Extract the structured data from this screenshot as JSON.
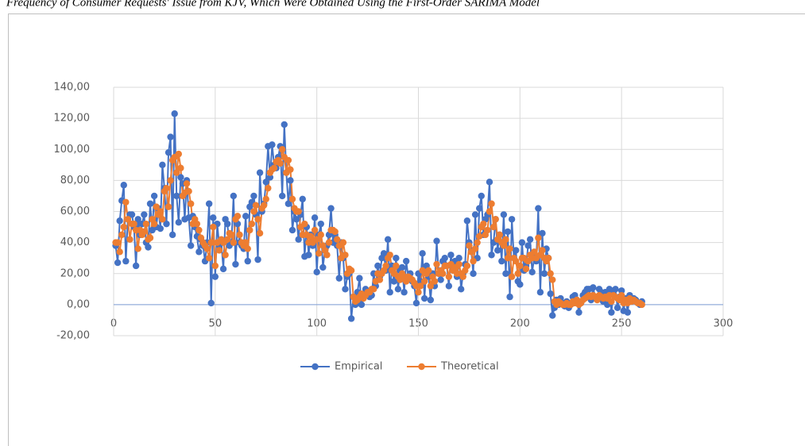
{
  "caption": "Frequency of Consumer Requests' Issue from KJV, Which Were Obtained Using the First-Order SARIMA Model",
  "chart_data": {
    "type": "line",
    "x": [
      1,
      2,
      3,
      4,
      5,
      6,
      7,
      8,
      9,
      10,
      11,
      12,
      13,
      14,
      15,
      16,
      17,
      18,
      19,
      20,
      21,
      22,
      23,
      24,
      25,
      26,
      27,
      28,
      29,
      30,
      31,
      32,
      33,
      34,
      35,
      36,
      37,
      38,
      39,
      40,
      41,
      42,
      43,
      44,
      45,
      46,
      47,
      48,
      49,
      50,
      51,
      52,
      53,
      54,
      55,
      56,
      57,
      58,
      59,
      60,
      61,
      62,
      63,
      64,
      65,
      66,
      67,
      68,
      69,
      70,
      71,
      72,
      73,
      74,
      75,
      76,
      77,
      78,
      79,
      80,
      81,
      82,
      83,
      84,
      85,
      86,
      87,
      88,
      89,
      90,
      91,
      92,
      93,
      94,
      95,
      96,
      97,
      98,
      99,
      100,
      101,
      102,
      103,
      104,
      105,
      106,
      107,
      108,
      109,
      110,
      111,
      112,
      113,
      114,
      115,
      116,
      117,
      118,
      119,
      120,
      121,
      122,
      123,
      124,
      125,
      126,
      127,
      128,
      129,
      130,
      131,
      132,
      133,
      134,
      135,
      136,
      137,
      138,
      139,
      140,
      141,
      142,
      143,
      144,
      145,
      146,
      147,
      148,
      149,
      150,
      151,
      152,
      153,
      154,
      155,
      156,
      157,
      158,
      159,
      160,
      161,
      162,
      163,
      164,
      165,
      166,
      167,
      168,
      169,
      170,
      171,
      172,
      173,
      174,
      175,
      176,
      177,
      178,
      179,
      180,
      181,
      182,
      183,
      184,
      185,
      186,
      187,
      188,
      189,
      190,
      191,
      192,
      193,
      194,
      195,
      196,
      197,
      198,
      199,
      200,
      201,
      202,
      203,
      204,
      205,
      206,
      207,
      208,
      209,
      210,
      211,
      212,
      213,
      214,
      215,
      216,
      217,
      218,
      219,
      220,
      221,
      222,
      223,
      224,
      225,
      226,
      227,
      228,
      229,
      230,
      231,
      232,
      233,
      234,
      235,
      236,
      237,
      238,
      239,
      240,
      241,
      242,
      243,
      244,
      245,
      246,
      247,
      248,
      249,
      250,
      251,
      252,
      253,
      254,
      255,
      256,
      257,
      258,
      259,
      260
    ],
    "series": [
      {
        "name": "Empirical",
        "color": "#4472c4",
        "values": [
          38,
          27,
          54,
          67,
          77,
          28,
          55,
          58,
          58,
          50,
          25,
          55,
          45,
          52,
          58,
          40,
          37,
          65,
          48,
          70,
          50,
          62,
          49,
          90,
          75,
          52,
          98,
          108,
          45,
          123,
          70,
          53,
          82,
          78,
          55,
          80,
          56,
          38,
          57,
          50,
          44,
          34,
          42,
          38,
          28,
          40,
          65,
          1,
          56,
          18,
          52,
          38,
          40,
          23,
          55,
          52,
          38,
          40,
          70,
          26,
          52,
          40,
          38,
          36,
          57,
          28,
          63,
          66,
          70,
          58,
          29,
          85,
          60,
          65,
          79,
          102,
          82,
          103,
          90,
          88,
          95,
          102,
          70,
          116,
          85,
          65,
          80,
          48,
          60,
          55,
          42,
          58,
          68,
          31,
          50,
          32,
          45,
          38,
          56,
          21,
          45,
          52,
          24,
          35,
          38,
          45,
          62,
          40,
          45,
          38,
          17,
          40,
          30,
          10,
          18,
          20,
          -9,
          5,
          0,
          8,
          17,
          0,
          5,
          10,
          8,
          5,
          6,
          20,
          12,
          25,
          18,
          30,
          33,
          22,
          42,
          8,
          25,
          15,
          30,
          10,
          22,
          24,
          8,
          28,
          18,
          20,
          15,
          12,
          1,
          20,
          15,
          33,
          4,
          25,
          18,
          3,
          20,
          12,
          41,
          20,
          16,
          28,
          30,
          25,
          12,
          32,
          22,
          28,
          18,
          30,
          10,
          20,
          26,
          54,
          40,
          35,
          20,
          58,
          30,
          62,
          70,
          45,
          55,
          58,
          79,
          32,
          40,
          55,
          35,
          45,
          28,
          58,
          20,
          47,
          5,
          55,
          30,
          35,
          15,
          13,
          40,
          22,
          25,
          38,
          42,
          21,
          30,
          28,
          62,
          8,
          46,
          20,
          36,
          30,
          7,
          -7,
          -2,
          3,
          0,
          4,
          1,
          -1,
          2,
          -2,
          0,
          5,
          6,
          3,
          -5,
          1,
          6,
          8,
          10,
          10,
          3,
          11,
          5,
          4,
          10,
          8,
          2,
          8,
          0,
          10,
          -5,
          9,
          10,
          -2,
          5,
          9,
          -4,
          4,
          -5,
          6,
          2,
          4,
          3,
          1,
          0,
          2
        ]
      },
      {
        "name": "Theoretical",
        "color": "#ed7d31",
        "values": [
          40,
          40,
          34,
          45,
          50,
          66,
          55,
          42,
          52,
          52,
          48,
          36,
          48,
          45,
          47,
          52,
          42,
          43,
          55,
          52,
          63,
          58,
          60,
          55,
          73,
          75,
          63,
          80,
          93,
          95,
          85,
          97,
          88,
          70,
          72,
          78,
          73,
          65,
          52,
          55,
          52,
          48,
          43,
          40,
          38,
          36,
          30,
          40,
          50,
          25,
          40,
          35,
          42,
          40,
          32,
          42,
          46,
          45,
          40,
          55,
          57,
          45,
          40,
          38,
          40,
          36,
          48,
          52,
          60,
          64,
          55,
          46,
          62,
          64,
          68,
          75,
          85,
          87,
          88,
          92,
          93,
          91,
          100,
          95,
          85,
          93,
          87,
          68,
          62,
          60,
          60,
          50,
          45,
          52,
          45,
          40,
          44,
          40,
          48,
          42,
          33,
          45,
          38,
          35,
          32,
          40,
          48,
          48,
          47,
          42,
          38,
          30,
          40,
          32,
          20,
          23,
          22,
          5,
          2,
          3,
          5,
          7,
          4,
          6,
          8,
          8,
          10,
          10,
          15,
          20,
          16,
          20,
          22,
          25,
          30,
          32,
          22,
          20,
          25,
          18,
          16,
          20,
          18,
          15,
          18,
          17,
          16,
          14,
          12,
          8,
          12,
          22,
          15,
          20,
          22,
          12,
          18,
          15,
          26,
          20,
          22,
          20,
          25,
          25,
          18,
          26,
          22,
          24,
          20,
          26,
          20,
          18,
          22,
          25,
          38,
          34,
          28,
          36,
          40,
          44,
          50,
          52,
          45,
          48,
          60,
          65,
          50,
          55,
          42,
          45,
          40,
          38,
          42,
          30,
          36,
          18,
          30,
          28,
          20,
          25,
          30,
          30,
          23,
          28,
          32,
          30,
          34,
          30,
          43,
          32,
          35,
          30,
          28,
          30,
          20,
          16,
          2,
          0,
          2,
          1,
          0,
          0,
          1,
          0,
          0,
          2,
          1,
          3,
          0,
          1,
          3,
          4,
          5,
          6,
          5,
          6,
          5,
          3,
          6,
          5,
          4,
          5,
          4,
          6,
          2,
          6,
          5,
          4,
          3,
          6,
          1,
          3,
          1,
          4,
          2,
          3,
          2,
          1,
          1,
          0
        ]
      }
    ],
    "xlim": [
      0,
      300
    ],
    "xticks": [
      0,
      50,
      100,
      150,
      200,
      250,
      300
    ],
    "ylim": [
      -20,
      140
    ],
    "yticks": [
      {
        "value": -20,
        "label": "-20,00"
      },
      {
        "value": 0,
        "label": "0,00"
      },
      {
        "value": 20,
        "label": "20,00"
      },
      {
        "value": 40,
        "label": "40,00"
      },
      {
        "value": 60,
        "label": "60,00"
      },
      {
        "value": 80,
        "label": "80,00"
      },
      {
        "value": 100,
        "label": "100,00"
      },
      {
        "value": 120,
        "label": "120,00"
      },
      {
        "value": 140,
        "label": "140,00"
      }
    ],
    "grid": true,
    "legend": "bottom"
  }
}
